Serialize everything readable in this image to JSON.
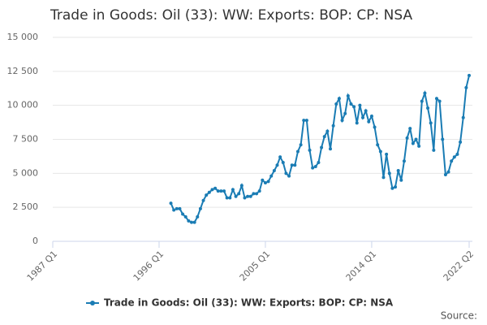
{
  "chart_data": {
    "type": "line",
    "title": "Trade in Goods: Oil (33): WW: Exports: BOP: CP: NSA",
    "source": "Source:",
    "categories": [
      "1987 Q1",
      null,
      null,
      null,
      null,
      null,
      null,
      null,
      null,
      null,
      null,
      null,
      null,
      null,
      null,
      null,
      null,
      null,
      null,
      null,
      null,
      null,
      null,
      null,
      null,
      null,
      null,
      null,
      null,
      null,
      null,
      null,
      null,
      null,
      null,
      null,
      "1996 Q1",
      null,
      null,
      null,
      null,
      null,
      null,
      null,
      null,
      null,
      null,
      null,
      null,
      null,
      null,
      null,
      null,
      null,
      null,
      null,
      null,
      null,
      null,
      null,
      null,
      null,
      null,
      null,
      null,
      null,
      null,
      null,
      null,
      null,
      null,
      null,
      "2005 Q1",
      null,
      null,
      null,
      null,
      null,
      null,
      null,
      null,
      null,
      null,
      null,
      null,
      null,
      null,
      null,
      null,
      null,
      null,
      null,
      null,
      null,
      null,
      null,
      null,
      null,
      null,
      null,
      null,
      null,
      null,
      null,
      null,
      null,
      null,
      null,
      "2014 Q1",
      null,
      null,
      null,
      null,
      null,
      null,
      null,
      null,
      null,
      null,
      null,
      null,
      null,
      null,
      null,
      null,
      null,
      null,
      null,
      null,
      null,
      null,
      null,
      null,
      null,
      null,
      null,
      null,
      null,
      null,
      null,
      null,
      "2022 Q2"
    ],
    "series": [
      {
        "name": "Trade in Goods: Oil (33): WW: Exports: BOP: CP: NSA",
        "color": "#1a7cb4",
        "values": [
          null,
          null,
          null,
          null,
          null,
          null,
          null,
          null,
          null,
          null,
          null,
          null,
          null,
          null,
          null,
          null,
          null,
          null,
          null,
          null,
          null,
          null,
          null,
          null,
          null,
          null,
          null,
          null,
          null,
          null,
          null,
          null,
          null,
          null,
          null,
          null,
          null,
          null,
          null,
          null,
          2800,
          2300,
          2400,
          2400,
          2000,
          1800,
          1500,
          1400,
          1400,
          1800,
          2400,
          3000,
          3400,
          3600,
          3800,
          3900,
          3700,
          3700,
          3700,
          3200,
          3200,
          3800,
          3300,
          3500,
          4100,
          3200,
          3300,
          3300,
          3500,
          3500,
          3700,
          4500,
          4300,
          4400,
          4800,
          5200,
          5600,
          6200,
          5800,
          5000,
          4800,
          5600,
          5600,
          6600,
          7100,
          8900,
          8900,
          6700,
          5400,
          5500,
          5800,
          6900,
          7700,
          8100,
          6800,
          8500,
          10100,
          10500,
          8900,
          9400,
          10700,
          10100,
          9900,
          8700,
          10000,
          9100,
          9600,
          8800,
          9200,
          8400,
          7100,
          6600,
          4700,
          6400,
          5000,
          3900,
          4000,
          5200,
          4500,
          5900,
          7600,
          8300,
          7200,
          7500,
          7000,
          10300,
          10900,
          9800,
          8700,
          6700,
          10500,
          10300,
          7500,
          4900,
          5100,
          5900,
          6200,
          6400,
          7300,
          9100,
          11300,
          12200
        ]
      }
    ],
    "ylim": [
      0,
      15000
    ],
    "yticks": [
      0,
      {
        "value": 2500,
        "label": "2 500"
      },
      {
        "value": 5000,
        "label": "5 000"
      },
      {
        "value": 7500,
        "label": "7 500"
      },
      {
        "value": 10000,
        "label": "10 000"
      },
      {
        "value": 12500,
        "label": "12 500"
      },
      {
        "value": 15000,
        "label": "15 000"
      }
    ],
    "grid": true
  }
}
